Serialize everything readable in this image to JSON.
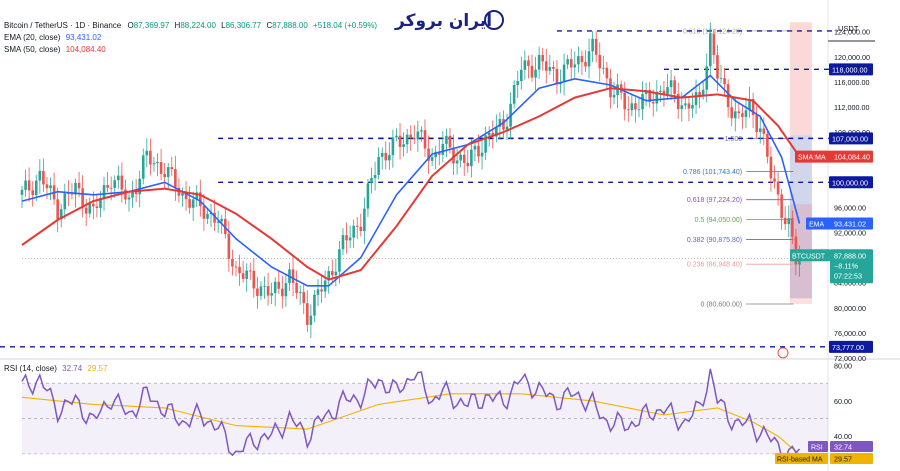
{
  "header": {
    "symbol": "Bitcoin / TetherUS · 1D · Binance",
    "ohlc": [
      {
        "k": "O",
        "v": "87,369.97"
      },
      {
        "k": "H",
        "v": "88,224.00"
      },
      {
        "k": "L",
        "v": "86,306.77"
      },
      {
        "k": "C",
        "v": "87,888.00"
      }
    ],
    "change": "+518.04 (+0.59%)",
    "ema_label": "EMA (20, close)",
    "ema_value": "93,431.02",
    "sma_label": "SMA (50, close)",
    "sma_value": "104,084.40",
    "rsi_label": "RSI (14, close)",
    "rsi_value": "32.74",
    "rsi_ma_value": "29.57"
  },
  "logo": {
    "text": "ایران بروکر"
  },
  "axis": {
    "currency": "USDT"
  },
  "colors": {
    "up": "#26a69a",
    "down": "#ef5350",
    "ema": "#2962ff",
    "sma": "#e53935",
    "level": "#0d1a9e",
    "rsi": "#7e57c2",
    "rsi_ma": "#f0b400",
    "last_price": "#26a69a"
  },
  "chart_data": [
    {
      "type": "candlestick",
      "title": "Bitcoin / TetherUS · 1D · Binance",
      "y_ticks": [
        "124,000.00",
        "120,000.00",
        "116,000.00",
        "112,000.00",
        "108,000.00",
        "104,000.00",
        "100,000.00",
        "96,000.00",
        "92,000.00",
        "88,000.00",
        "84,000.00",
        "80,000.00",
        "76,000.00",
        "72,000.00"
      ],
      "ylim": [
        72000,
        126500
      ],
      "price_path": [
        [
          0,
          98000
        ],
        [
          5,
          101000
        ],
        [
          10,
          96000
        ],
        [
          15,
          99000
        ],
        [
          20,
          95000
        ],
        [
          25,
          101000
        ],
        [
          30,
          97000
        ],
        [
          35,
          104000
        ],
        [
          40,
          102000
        ],
        [
          45,
          98000
        ],
        [
          50,
          96000
        ],
        [
          55,
          94000
        ],
        [
          60,
          86000
        ],
        [
          65,
          84000
        ],
        [
          70,
          82000
        ],
        [
          75,
          85000
        ],
        [
          80,
          79000
        ],
        [
          83,
          82000
        ],
        [
          86,
          85000
        ],
        [
          90,
          90000
        ],
        [
          95,
          94000
        ],
        [
          100,
          104000
        ],
        [
          105,
          106000
        ],
        [
          110,
          108000
        ],
        [
          115,
          104000
        ],
        [
          118,
          106000
        ],
        [
          120,
          105000
        ],
        [
          125,
          103000
        ],
        [
          130,
          107000
        ],
        [
          135,
          109000
        ],
        [
          140,
          118000
        ],
        [
          145,
          119000
        ],
        [
          150,
          117000
        ],
        [
          155,
          119000
        ],
        [
          160,
          121000
        ],
        [
          163,
          118000
        ],
        [
          165,
          115000
        ],
        [
          170,
          112000
        ],
        [
          175,
          113000
        ],
        [
          180,
          115000
        ],
        [
          183,
          114000
        ],
        [
          186,
          112000
        ],
        [
          190,
          113000
        ],
        [
          193,
          123000
        ],
        [
          195,
          117000
        ],
        [
          198,
          113000
        ],
        [
          201,
          110000
        ],
        [
          204,
          112000
        ],
        [
          207,
          109000
        ],
        [
          210,
          101000
        ],
        [
          213,
          96000
        ],
        [
          215,
          93000
        ],
        [
          217,
          87369.97
        ],
        [
          218,
          87888
        ]
      ],
      "series": [
        {
          "name": "EMA (20, close)",
          "last": 93431.02,
          "points": [
            [
              0,
              97000
            ],
            [
              10,
              98500
            ],
            [
              20,
              98000
            ],
            [
              30,
              98500
            ],
            [
              40,
              100000
            ],
            [
              50,
              97000
            ],
            [
              60,
              91000
            ],
            [
              70,
              86500
            ],
            [
              80,
              83500
            ],
            [
              86,
              83500
            ],
            [
              95,
              88000
            ],
            [
              105,
              98000
            ],
            [
              115,
              104500
            ],
            [
              125,
              106000
            ],
            [
              135,
              109500
            ],
            [
              145,
              115000
            ],
            [
              155,
              116500
            ],
            [
              165,
              115500
            ],
            [
              175,
              113000
            ],
            [
              185,
              113500
            ],
            [
              193,
              117000
            ],
            [
              200,
              113000
            ],
            [
              207,
              110500
            ],
            [
              213,
              104000
            ],
            [
              218,
              93431.02
            ]
          ]
        },
        {
          "name": "SMA (50, close)",
          "last": 104084.4,
          "points": [
            [
              0,
              90000
            ],
            [
              10,
              94000
            ],
            [
              20,
              97000
            ],
            [
              30,
              98500
            ],
            [
              40,
              99000
            ],
            [
              50,
              98000
            ],
            [
              60,
              95000
            ],
            [
              70,
              91000
            ],
            [
              80,
              86500
            ],
            [
              86,
              84500
            ],
            [
              95,
              86000
            ],
            [
              105,
              93000
            ],
            [
              115,
              101000
            ],
            [
              125,
              106000
            ],
            [
              135,
              108000
            ],
            [
              145,
              110500
            ],
            [
              155,
              113500
            ],
            [
              165,
              115000
            ],
            [
              175,
              114500
            ],
            [
              185,
              113500
            ],
            [
              195,
              114000
            ],
            [
              205,
              113000
            ],
            [
              212,
              109000
            ],
            [
              218,
              104084.4
            ]
          ]
        }
      ],
      "price_labels": [
        {
          "text": "118,000.00",
          "value": 118000
        },
        {
          "text": "107,000.00",
          "value": 107000
        },
        {
          "text": "SMA:MA",
          "value2": "104,084.40",
          "value": 104084.4
        },
        {
          "text": "100,000.00",
          "value": 100000
        },
        {
          "text": "EMA",
          "value2": "93,431.02",
          "value": 93431.02
        },
        {
          "text": "BTCUSDT",
          "value2": "87,888.00",
          "extra": [
            "−8.11%",
            "07:22:53"
          ],
          "value": 87888
        },
        {
          "text": "73,777.00",
          "value": 73777
        }
      ],
      "horizontal_levels": [
        124124,
        118000,
        107000,
        100000,
        73777
      ],
      "fibonacci": [
        {
          "label": "0.618 (124,124.20)",
          "value": 124124.2
        },
        {
          "label": "0.786 (101,743.40)",
          "value": 101743.4
        },
        {
          "label": "0.618 (97,224.20)",
          "value": 97224.2
        },
        {
          "label": "0.5 (94,050.00)",
          "value": 94050
        },
        {
          "label": "0.382 (90,875.80)",
          "value": 90875.8
        },
        {
          "label": "0.236 (86,948.40)",
          "value": 86948.4
        },
        {
          "label": "0 (80,600.00)",
          "value": 80600
        },
        {
          "label": "1.500",
          "value": 107000
        }
      ]
    },
    {
      "type": "line",
      "title": "RSI (14, close)",
      "y_ticks": [
        "80.00",
        "60.00",
        "40.00"
      ],
      "ylim": [
        22,
        82
      ],
      "band": [
        30,
        70
      ],
      "series": [
        {
          "name": "RSI",
          "last": 32.74,
          "points": [
            [
              0,
              68
            ],
            [
              5,
              72
            ],
            [
              10,
              55
            ],
            [
              15,
              60
            ],
            [
              20,
              48
            ],
            [
              25,
              62
            ],
            [
              30,
              52
            ],
            [
              35,
              64
            ],
            [
              40,
              55
            ],
            [
              45,
              48
            ],
            [
              50,
              52
            ],
            [
              55,
              45
            ],
            [
              60,
              30
            ],
            [
              65,
              38
            ],
            [
              70,
              40
            ],
            [
              75,
              50
            ],
            [
              80,
              40
            ],
            [
              83,
              48
            ],
            [
              86,
              52
            ],
            [
              90,
              60
            ],
            [
              95,
              62
            ],
            [
              100,
              72
            ],
            [
              105,
              65
            ],
            [
              110,
              76
            ],
            [
              115,
              60
            ],
            [
              118,
              66
            ],
            [
              120,
              62
            ],
            [
              125,
              58
            ],
            [
              130,
              62
            ],
            [
              135,
              60
            ],
            [
              140,
              72
            ],
            [
              145,
              66
            ],
            [
              150,
              60
            ],
            [
              155,
              64
            ],
            [
              160,
              58
            ],
            [
              163,
              50
            ],
            [
              165,
              48
            ],
            [
              170,
              46
            ],
            [
              175,
              52
            ],
            [
              180,
              56
            ],
            [
              183,
              50
            ],
            [
              186,
              48
            ],
            [
              190,
              56
            ],
            [
              193,
              76
            ],
            [
              195,
              60
            ],
            [
              198,
              52
            ],
            [
              201,
              46
            ],
            [
              204,
              48
            ],
            [
              207,
              42
            ],
            [
              210,
              38
            ],
            [
              213,
              34
            ],
            [
              215,
              28
            ],
            [
              217,
              32
            ],
            [
              218,
              32.74
            ]
          ]
        },
        {
          "name": "RSI-based MA",
          "last": 29.57,
          "points": [
            [
              0,
              62
            ],
            [
              20,
              58
            ],
            [
              40,
              56
            ],
            [
              60,
              46
            ],
            [
              80,
              44
            ],
            [
              100,
              58
            ],
            [
              120,
              64
            ],
            [
              140,
              64
            ],
            [
              160,
              60
            ],
            [
              180,
              52
            ],
            [
              195,
              56
            ],
            [
              205,
              48
            ],
            [
              212,
              40
            ],
            [
              218,
              29.57
            ]
          ]
        }
      ],
      "price_labels": [
        {
          "text": "RSI",
          "value2": "32.74",
          "value": 32.74
        },
        {
          "text": "RSI-based MA",
          "value2": "29.57",
          "value": 29.57
        }
      ]
    }
  ]
}
